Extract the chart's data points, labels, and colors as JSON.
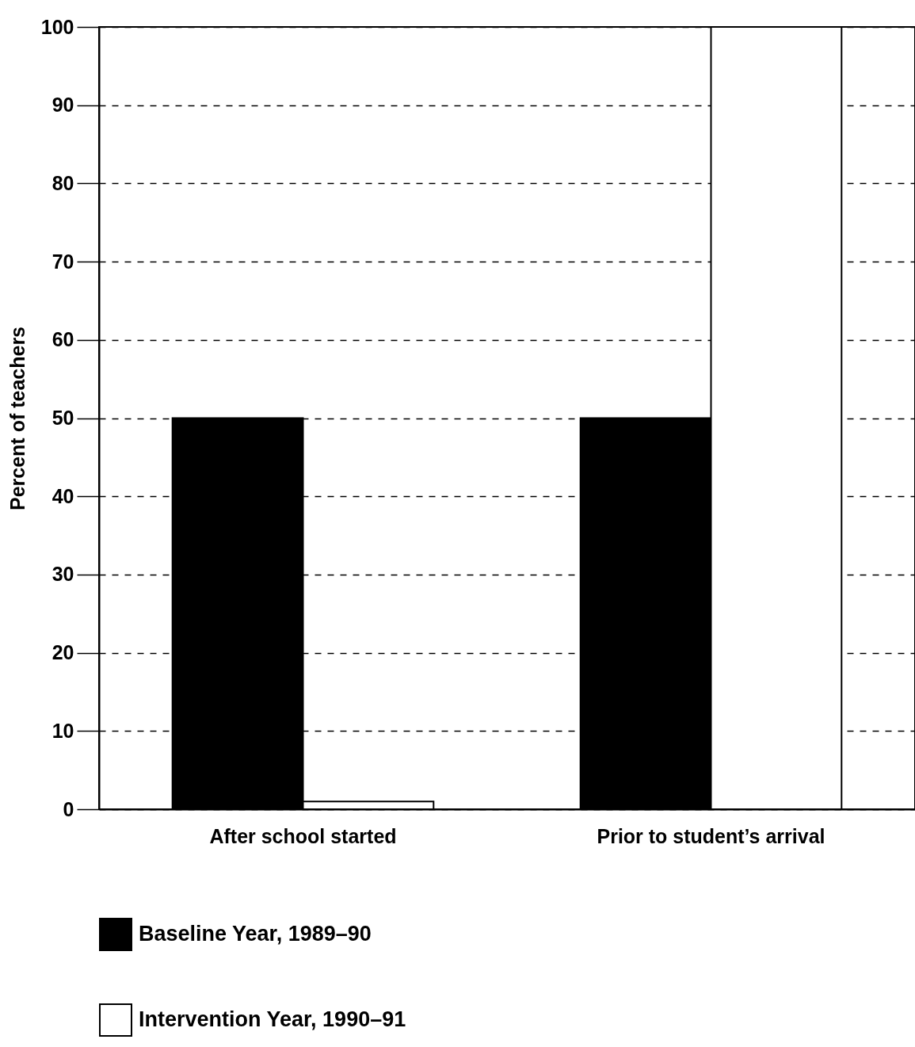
{
  "chart_data": {
    "type": "bar",
    "ylabel": "Percent of teachers",
    "categories": [
      "After school started",
      "Prior to student’s arrival"
    ],
    "series": [
      {
        "name": "Baseline Year, 1989–90",
        "color": "#000000",
        "values": [
          50,
          50
        ]
      },
      {
        "name": "Intervention Year, 1990–91",
        "color": "#ffffff",
        "values": [
          1,
          100
        ]
      }
    ],
    "ylim": [
      0,
      100
    ],
    "yticks": [
      0,
      10,
      20,
      30,
      40,
      50,
      60,
      70,
      80,
      90,
      100
    ],
    "grid": "y",
    "legend": "bottom"
  }
}
